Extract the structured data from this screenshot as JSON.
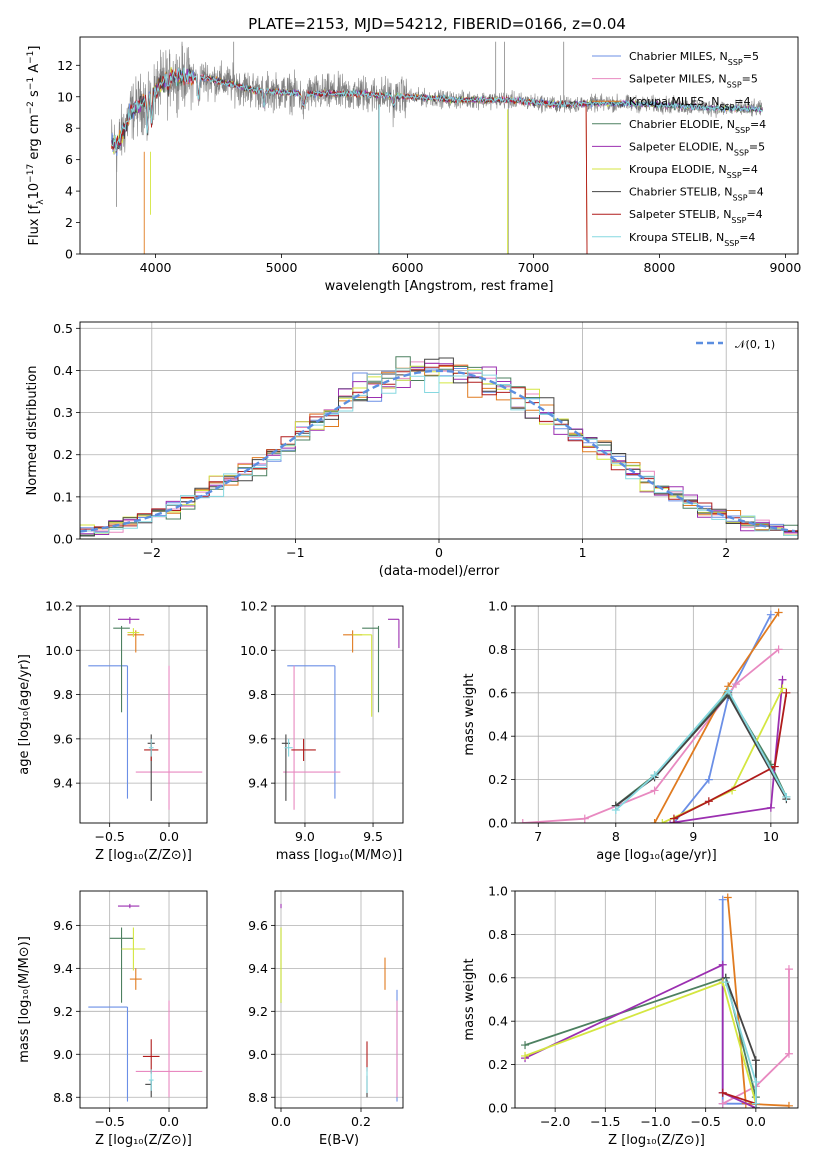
{
  "figure": {
    "title": "PLATE=2153, MJD=54212, FIBERID=0166, z=0.04"
  },
  "series": [
    {
      "name": "Chabrier MILES",
      "n": "5",
      "color": "#6b8fe6"
    },
    {
      "name": "Salpeter MILES",
      "n": "5",
      "color": "#e889c0"
    },
    {
      "name": "Kroupa MILES",
      "n": "4",
      "color": "#e07b20"
    },
    {
      "name": "Chabrier ELODIE",
      "n": "4",
      "color": "#4d8060"
    },
    {
      "name": "Salpeter ELODIE",
      "n": "5",
      "color": "#9b2fb0"
    },
    {
      "name": "Kroupa ELODIE",
      "n": "4",
      "color": "#d4e640"
    },
    {
      "name": "Chabrier STELIB",
      "n": "4",
      "color": "#444444"
    },
    {
      "name": "Salpeter STELIB",
      "n": "4",
      "color": "#b01c1c"
    },
    {
      "name": "Kroupa STELIB",
      "n": "4",
      "color": "#86d8e0"
    }
  ],
  "chart_data": [
    {
      "id": "spectrum",
      "type": "line",
      "xlabel": "wavelength [Angstrom, rest frame]",
      "ylabel_pre": "Flux [f",
      "ylabel_mid": "10",
      "ylabel_sup1": "−17",
      "ylabel_post": " erg cm",
      "ylabel_sup2": "−2",
      "ylabel_post2": " s",
      "ylabel_sup3": "−1",
      "ylabel_post3": " A",
      "ylabel_sup4": "−1",
      "ylabel_end": "]",
      "xlim": [
        3400,
        9100
      ],
      "ylim": [
        0,
        13.8
      ],
      "xticks": [
        4000,
        5000,
        6000,
        7000,
        8000,
        9000
      ],
      "yticks": [
        0,
        2,
        4,
        6,
        8,
        10,
        12
      ],
      "data_range": [
        3650,
        8820
      ],
      "continuum": [
        [
          3650,
          7.0
        ],
        [
          3700,
          6.9
        ],
        [
          3800,
          9.0
        ],
        [
          3950,
          10.0
        ],
        [
          4100,
          11.3
        ],
        [
          4400,
          11.2
        ],
        [
          4800,
          10.4
        ],
        [
          5200,
          10.2
        ],
        [
          5600,
          10.2
        ],
        [
          6000,
          10.0
        ],
        [
          6400,
          9.8
        ],
        [
          6800,
          9.8
        ],
        [
          7200,
          9.5
        ],
        [
          7600,
          9.6
        ],
        [
          8000,
          9.5
        ],
        [
          8400,
          9.3
        ],
        [
          8820,
          9.2
        ]
      ],
      "legend_suffix": "SSP",
      "legend_prefix": ", N",
      "legend_eq": "="
    },
    {
      "id": "residuals",
      "type": "histogram",
      "xlabel": "(data-model)/error",
      "ylabel": "Normed distribution",
      "xlim": [
        -2.5,
        2.5
      ],
      "ylim": [
        0,
        0.515
      ],
      "xticks": [
        -2,
        -1,
        0,
        1,
        2
      ],
      "yticks": [
        0,
        0.1,
        0.2,
        0.3,
        0.4,
        0.5
      ],
      "bin_width": 0.1,
      "gauss_label": "𝒩(0, 1)",
      "gauss_color": "#5b8ee0"
    },
    {
      "id": "age-vs-Z",
      "type": "errorbar",
      "xlabel": "Z [log₁₀(Z/Z⊙)]",
      "ylabel": "age  [log₁₀(age/yr)]",
      "xlim": [
        -0.75,
        0.32
      ],
      "ylim": [
        9.22,
        10.2
      ],
      "xticks": [
        -0.5,
        0.0
      ],
      "yticks": [
        9.4,
        9.6,
        9.8,
        10.0,
        10.2
      ],
      "points": [
        {
          "s": 0,
          "x": -0.35,
          "xerr": [
            0.33,
            0.0
          ],
          "y": 9.93,
          "yerr": [
            0.6,
            0.0
          ]
        },
        {
          "s": 1,
          "x": 0.0,
          "xerr": [
            0.28,
            0.28
          ],
          "y": 9.45,
          "yerr": [
            0.17,
            0.48
          ]
        },
        {
          "s": 2,
          "x": -0.28,
          "xerr": [
            0.07,
            0.07
          ],
          "y": 10.07,
          "yerr": [
            0.08,
            0.02
          ]
        },
        {
          "s": 3,
          "x": -0.4,
          "xerr": [
            0.07,
            0.07
          ],
          "y": 10.1,
          "yerr": [
            0.38,
            0.01
          ]
        },
        {
          "s": 4,
          "x": -0.33,
          "xerr": [
            0.1,
            0.08
          ],
          "y": 10.14,
          "yerr": [
            0.02,
            0.01
          ]
        },
        {
          "s": 5,
          "x": -0.3,
          "xerr": [
            0.05,
            0.05
          ],
          "y": 10.08,
          "yerr": [
            0.02,
            0.02
          ]
        },
        {
          "s": 6,
          "x": -0.15,
          "xerr": [
            0.03,
            0.03
          ],
          "y": 9.58,
          "yerr": [
            0.26,
            0.04
          ]
        },
        {
          "s": 7,
          "x": -0.15,
          "xerr": [
            0.06,
            0.06
          ],
          "y": 9.55,
          "yerr": [
            0.05,
            0.05
          ]
        },
        {
          "s": 8,
          "x": -0.15,
          "xerr": [
            0.02,
            0.02
          ],
          "y": 9.56,
          "yerr": [
            0.04,
            0.04
          ]
        }
      ]
    },
    {
      "id": "age-vs-mass",
      "type": "errorbar",
      "xlabel": "mass [log₁₀(M/M⊙)]",
      "ylabel": "",
      "xlim": [
        8.78,
        9.72
      ],
      "ylim": [
        9.22,
        10.2
      ],
      "xticks": [
        9.0,
        9.5
      ],
      "yticks": [
        9.4,
        9.6,
        9.8,
        10.0,
        10.2
      ],
      "points": [
        {
          "s": 0,
          "x": 9.22,
          "xerr": [
            0.35,
            0.0
          ],
          "y": 9.93,
          "yerr": [
            0.6,
            0.0
          ]
        },
        {
          "s": 1,
          "x": 8.92,
          "xerr": [
            0.08,
            0.34
          ],
          "y": 9.45,
          "yerr": [
            0.17,
            0.48
          ]
        },
        {
          "s": 2,
          "x": 9.35,
          "xerr": [
            0.07,
            0.07
          ],
          "y": 10.07,
          "yerr": [
            0.08,
            0.02
          ]
        },
        {
          "s": 3,
          "x": 9.54,
          "xerr": [
            0.12,
            0.0
          ],
          "y": 10.1,
          "yerr": [
            0.38,
            0.01
          ]
        },
        {
          "s": 4,
          "x": 9.69,
          "xerr": [
            0.08,
            0.0
          ],
          "y": 10.14,
          "yerr": [
            0.13,
            0.0
          ]
        },
        {
          "s": 5,
          "x": 9.49,
          "xerr": [
            0.14,
            0.0
          ],
          "y": 10.07,
          "yerr": [
            0.37,
            0.0
          ]
        },
        {
          "s": 6,
          "x": 8.86,
          "xerr": [
            0.03,
            0.03
          ],
          "y": 9.58,
          "yerr": [
            0.26,
            0.04
          ]
        },
        {
          "s": 7,
          "x": 8.99,
          "xerr": [
            0.09,
            0.09
          ],
          "y": 9.55,
          "yerr": [
            0.05,
            0.05
          ]
        },
        {
          "s": 8,
          "x": 8.88,
          "xerr": [
            0.03,
            0.03
          ],
          "y": 9.56,
          "yerr": [
            0.04,
            0.04
          ]
        }
      ]
    },
    {
      "id": "mass-weight-vs-age",
      "type": "line",
      "xlabel": "age  [log₁₀(age/yr)]",
      "ylabel": "mass weight",
      "xlim": [
        6.7,
        10.35
      ],
      "ylim": [
        0,
        1.0
      ],
      "xticks": [
        7,
        8,
        9,
        10
      ],
      "yticks": [
        0,
        0.2,
        0.4,
        0.6,
        0.8,
        1.0
      ],
      "lines": [
        {
          "s": 0,
          "pts": [
            [
              8.75,
              0.0
            ],
            [
              9.2,
              0.2
            ],
            [
              9.45,
              0.58
            ],
            [
              10.0,
              0.96
            ]
          ]
        },
        {
          "s": 1,
          "pts": [
            [
              6.8,
              0.0
            ],
            [
              7.6,
              0.02
            ],
            [
              8.5,
              0.15
            ],
            [
              9.55,
              0.64
            ],
            [
              10.1,
              0.8
            ]
          ]
        },
        {
          "s": 2,
          "pts": [
            [
              8.5,
              0.0
            ],
            [
              9.45,
              0.63
            ],
            [
              10.1,
              0.97
            ]
          ]
        },
        {
          "s": 3,
          "pts": [
            [
              8.0,
              0.08
            ],
            [
              8.5,
              0.22
            ],
            [
              9.45,
              0.6
            ],
            [
              10.0,
              0.27
            ],
            [
              10.2,
              0.12
            ]
          ]
        },
        {
          "s": 4,
          "pts": [
            [
              8.7,
              0.0
            ],
            [
              10.0,
              0.07
            ],
            [
              10.15,
              0.66
            ]
          ]
        },
        {
          "s": 5,
          "pts": [
            [
              8.6,
              0.0
            ],
            [
              9.5,
              0.15
            ],
            [
              10.15,
              0.62
            ]
          ]
        },
        {
          "s": 6,
          "pts": [
            [
              8.0,
              0.08
            ],
            [
              8.5,
              0.21
            ],
            [
              9.45,
              0.59
            ],
            [
              10.2,
              0.11
            ]
          ]
        },
        {
          "s": 7,
          "pts": [
            [
              8.75,
              0.02
            ],
            [
              9.2,
              0.1
            ],
            [
              10.05,
              0.26
            ],
            [
              10.2,
              0.6
            ]
          ]
        },
        {
          "s": 8,
          "pts": [
            [
              8.0,
              0.06
            ],
            [
              8.5,
              0.22
            ],
            [
              9.45,
              0.61
            ],
            [
              10.2,
              0.12
            ]
          ]
        }
      ]
    },
    {
      "id": "mass-vs-Z",
      "type": "errorbar",
      "xlabel": "Z [log₁₀(Z/Z⊙)]",
      "ylabel": "mass [log₁₀(M/M⊙)]",
      "xlim": [
        -0.75,
        0.32
      ],
      "ylim": [
        8.75,
        9.76
      ],
      "xticks": [
        -0.5,
        0.0
      ],
      "yticks": [
        8.8,
        9.0,
        9.2,
        9.4,
        9.6
      ],
      "points": [
        {
          "s": 0,
          "x": -0.35,
          "xerr": [
            0.33,
            0.0
          ],
          "y": 9.22,
          "yerr": [
            0.44,
            0.0
          ]
        },
        {
          "s": 1,
          "x": 0.0,
          "xerr": [
            0.28,
            0.28
          ],
          "y": 8.92,
          "yerr": [
            0.12,
            0.33
          ]
        },
        {
          "s": 2,
          "x": -0.28,
          "xerr": [
            0.05,
            0.05
          ],
          "y": 9.35,
          "yerr": [
            0.05,
            0.05
          ]
        },
        {
          "s": 3,
          "x": -0.4,
          "xerr": [
            0.1,
            0.1
          ],
          "y": 9.54,
          "yerr": [
            0.3,
            0.05
          ]
        },
        {
          "s": 4,
          "x": -0.33,
          "xerr": [
            0.1,
            0.08
          ],
          "y": 9.69,
          "yerr": [
            0.01,
            0.01
          ]
        },
        {
          "s": 5,
          "x": -0.3,
          "xerr": [
            0.1,
            0.1
          ],
          "y": 9.49,
          "yerr": [
            0.1,
            0.1
          ]
        },
        {
          "s": 6,
          "x": -0.15,
          "xerr": [
            0.05,
            0.0
          ],
          "y": 8.86,
          "yerr": [
            0.06,
            0.02
          ]
        },
        {
          "s": 7,
          "x": -0.15,
          "xerr": [
            0.07,
            0.07
          ],
          "y": 8.99,
          "yerr": [
            0.08,
            0.08
          ]
        },
        {
          "s": 8,
          "x": -0.15,
          "xerr": [
            0.02,
            0.02
          ],
          "y": 8.88,
          "yerr": [
            0.05,
            0.05
          ]
        }
      ]
    },
    {
      "id": "mass-vs-ebv",
      "type": "errorbar",
      "xlabel": "E(B-V)",
      "ylabel": "",
      "xlim": [
        -0.015,
        0.305
      ],
      "ylim": [
        8.75,
        9.76
      ],
      "xticks": [
        0.0,
        0.2
      ],
      "yticks": [
        8.8,
        9.0,
        9.2,
        9.4,
        9.6
      ],
      "points": [
        {
          "s": 0,
          "x": 0.29,
          "xerr": [
            0,
            0
          ],
          "y": 9.22,
          "yerr": [
            0.44,
            0.08
          ]
        },
        {
          "s": 1,
          "x": 0.29,
          "xerr": [
            0,
            0
          ],
          "y": 8.92,
          "yerr": [
            0.12,
            0.33
          ]
        },
        {
          "s": 2,
          "x": 0.26,
          "xerr": [
            0,
            0
          ],
          "y": 9.35,
          "yerr": [
            0.05,
            0.1
          ]
        },
        {
          "s": 3,
          "x": 0.0,
          "xerr": [
            0,
            0
          ],
          "y": 9.54,
          "yerr": [
            0.3,
            0.05
          ]
        },
        {
          "s": 4,
          "x": 0.0,
          "xerr": [
            0,
            0
          ],
          "y": 9.69,
          "yerr": [
            0.01,
            0.01
          ]
        },
        {
          "s": 5,
          "x": 0.0,
          "xerr": [
            0,
            0
          ],
          "y": 9.49,
          "yerr": [
            0.25,
            0.1
          ]
        },
        {
          "s": 6,
          "x": 0.215,
          "xerr": [
            0,
            0
          ],
          "y": 8.86,
          "yerr": [
            0.06,
            0.04
          ]
        },
        {
          "s": 7,
          "x": 0.215,
          "xerr": [
            0,
            0
          ],
          "y": 8.99,
          "yerr": [
            0.07,
            0.07
          ]
        },
        {
          "s": 8,
          "x": 0.215,
          "xerr": [
            0,
            0
          ],
          "y": 8.88,
          "yerr": [
            0.06,
            0.06
          ]
        }
      ]
    },
    {
      "id": "mass-weight-vs-Z",
      "type": "line",
      "xlabel": "Z [log₁₀(Z/Z⊙)]",
      "ylabel": "mass weight",
      "xlim": [
        -2.4,
        0.42
      ],
      "ylim": [
        0,
        1.0
      ],
      "xticks": [
        -2.0,
        -1.5,
        -1.0,
        -0.5,
        0.0
      ],
      "yticks": [
        0,
        0.2,
        0.4,
        0.6,
        0.8,
        1.0
      ],
      "lines": [
        {
          "s": 0,
          "pts": [
            [
              -0.33,
              0.96
            ],
            [
              -0.33,
              0.02
            ],
            [
              0.0,
              0.02
            ]
          ]
        },
        {
          "s": 1,
          "pts": [
            [
              0.33,
              0.64
            ],
            [
              0.33,
              0.25
            ],
            [
              0.0,
              0.1
            ],
            [
              -0.33,
              0.02
            ]
          ]
        },
        {
          "s": 2,
          "pts": [
            [
              -0.28,
              0.97
            ],
            [
              -0.1,
              0.02
            ],
            [
              0.33,
              0.01
            ]
          ]
        },
        {
          "s": 3,
          "pts": [
            [
              -2.3,
              0.29
            ],
            [
              -0.3,
              0.6
            ],
            [
              0.0,
              0.05
            ]
          ]
        },
        {
          "s": 4,
          "pts": [
            [
              -2.3,
              0.23
            ],
            [
              -0.33,
              0.66
            ],
            [
              -0.33,
              0.07
            ],
            [
              0.0,
              0.0
            ]
          ]
        },
        {
          "s": 5,
          "pts": [
            [
              -2.3,
              0.24
            ],
            [
              -0.33,
              0.58
            ],
            [
              0.0,
              0.02
            ]
          ]
        },
        {
          "s": 6,
          "pts": [
            [
              -0.3,
              0.6
            ],
            [
              0.0,
              0.22
            ],
            [
              0.0,
              0.0
            ]
          ]
        },
        {
          "s": 7,
          "pts": [
            [
              -0.33,
              0.07
            ],
            [
              0.0,
              0.02
            ]
          ]
        },
        {
          "s": 8,
          "pts": [
            [
              -0.3,
              0.58
            ],
            [
              0.0,
              0.12
            ],
            [
              0.0,
              0.02
            ]
          ]
        }
      ]
    }
  ]
}
